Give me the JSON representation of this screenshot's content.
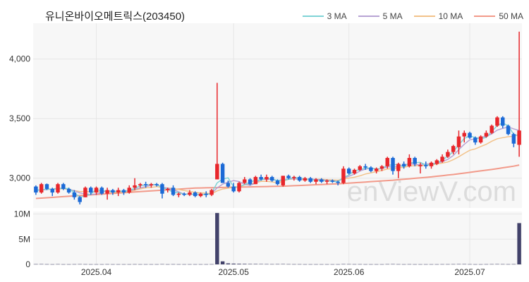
{
  "chart_data": {
    "type": "candlestick",
    "title": "유니온바이오메트릭스(203450)",
    "watermark": "enViewV.com",
    "price_axis": {
      "min": 2750,
      "max": 4300,
      "ticks": [
        3000,
        3500,
        4000
      ],
      "tick_labels": [
        "3,000",
        "3,500",
        "4,000"
      ]
    },
    "volume_axis": {
      "min": 0,
      "max": 10500000,
      "ticks": [
        0,
        5000000,
        10000000
      ],
      "tick_labels": [
        "0",
        "5M",
        "10M"
      ]
    },
    "x_tick_labels": [
      {
        "label": "2025.04",
        "at_index": 11
      },
      {
        "label": "2025.05",
        "at_index": 36
      },
      {
        "label": "2025.06",
        "at_index": 57
      },
      {
        "label": "2025.07",
        "at_index": 79
      }
    ],
    "legend": [
      {
        "name": "3 MA",
        "color": "#7fd3d6",
        "ref": "ma3"
      },
      {
        "name": "5 MA",
        "color": "#b7a3d4",
        "ref": "ma5"
      },
      {
        "name": "10 MA",
        "color": "#f2c28a",
        "ref": "ma10"
      },
      {
        "name": "50 MA",
        "color": "#f29a8a",
        "ref": "ma50"
      }
    ],
    "colors": {
      "up": "#e8262b",
      "down": "#1c6ad6",
      "volume": "#42426a",
      "grid": "#e6e6e6",
      "plot_bg": "#f7f7f7"
    },
    "candles": [
      [
        2930,
        2940,
        2860,
        2880,
        50000
      ],
      [
        2880,
        2960,
        2870,
        2950,
        60000
      ],
      [
        2950,
        2955,
        2900,
        2910,
        40000
      ],
      [
        2910,
        2920,
        2850,
        2880,
        30000
      ],
      [
        2880,
        2960,
        2870,
        2950,
        50000
      ],
      [
        2950,
        2960,
        2900,
        2910,
        30000
      ],
      [
        2910,
        2920,
        2870,
        2880,
        30000
      ],
      [
        2880,
        2900,
        2820,
        2840,
        40000
      ],
      [
        2840,
        2850,
        2780,
        2800,
        50000
      ],
      [
        2840,
        2930,
        2840,
        2920,
        40000
      ],
      [
        2920,
        2930,
        2860,
        2880,
        30000
      ],
      [
        2880,
        2930,
        2860,
        2920,
        30000
      ],
      [
        2920,
        2930,
        2860,
        2870,
        30000
      ],
      [
        2870,
        2920,
        2820,
        2900,
        40000
      ],
      [
        2900,
        2910,
        2860,
        2880,
        30000
      ],
      [
        2880,
        2920,
        2850,
        2900,
        30000
      ],
      [
        2900,
        2910,
        2860,
        2880,
        30000
      ],
      [
        2880,
        2940,
        2870,
        2920,
        30000
      ],
      [
        2920,
        3000,
        2900,
        2940,
        40000
      ],
      [
        2940,
        2960,
        2920,
        2950,
        30000
      ],
      [
        2950,
        2970,
        2920,
        2940,
        30000
      ],
      [
        2940,
        2960,
        2920,
        2950,
        30000
      ],
      [
        2950,
        2960,
        2930,
        2940,
        30000
      ],
      [
        2950,
        2960,
        2830,
        2870,
        50000
      ],
      [
        2900,
        2920,
        2880,
        2910,
        30000
      ],
      [
        2920,
        2940,
        2850,
        2860,
        40000
      ],
      [
        2860,
        2880,
        2840,
        2870,
        30000
      ],
      [
        2870,
        2880,
        2850,
        2860,
        30000
      ],
      [
        2860,
        2900,
        2850,
        2880,
        30000
      ],
      [
        2880,
        2890,
        2840,
        2850,
        30000
      ],
      [
        2850,
        2880,
        2840,
        2870,
        30000
      ],
      [
        2870,
        2890,
        2840,
        2860,
        30000
      ],
      [
        2860,
        2910,
        2850,
        2900,
        40000
      ],
      [
        2990,
        3800,
        2990,
        3120,
        10200000
      ],
      [
        3120,
        3130,
        2960,
        2960,
        600000
      ],
      [
        2960,
        2980,
        2920,
        2930,
        200000
      ],
      [
        2930,
        2960,
        2880,
        2890,
        150000
      ],
      [
        2890,
        2970,
        2880,
        2960,
        120000
      ],
      [
        2960,
        3010,
        2950,
        2990,
        100000
      ],
      [
        2990,
        3000,
        2940,
        2950,
        80000
      ],
      [
        2950,
        3020,
        2950,
        3010,
        80000
      ],
      [
        3010,
        3030,
        2980,
        2990,
        70000
      ],
      [
        2990,
        3030,
        2970,
        3010,
        60000
      ],
      [
        3010,
        3020,
        2970,
        2980,
        50000
      ],
      [
        2980,
        2990,
        2940,
        2950,
        60000
      ],
      [
        2940,
        3020,
        2930,
        3020,
        70000
      ],
      [
        3020,
        3030,
        2990,
        3000,
        50000
      ],
      [
        3000,
        3020,
        2980,
        3010,
        40000
      ],
      [
        3010,
        3020,
        2970,
        2980,
        40000
      ],
      [
        2980,
        3010,
        2970,
        3000,
        30000
      ],
      [
        3000,
        3010,
        2960,
        2970,
        30000
      ],
      [
        2970,
        3000,
        2950,
        2990,
        30000
      ],
      [
        2990,
        3000,
        2960,
        2970,
        30000
      ],
      [
        2970,
        2990,
        2950,
        2980,
        30000
      ],
      [
        2980,
        2990,
        2960,
        2970,
        30000
      ],
      [
        2970,
        2980,
        2940,
        2960,
        30000
      ],
      [
        2960,
        3100,
        2950,
        3080,
        60000
      ],
      [
        3080,
        3090,
        3030,
        3040,
        50000
      ],
      [
        3040,
        3080,
        3030,
        3070,
        40000
      ],
      [
        3070,
        3110,
        3060,
        3100,
        40000
      ],
      [
        3100,
        3120,
        3070,
        3090,
        30000
      ],
      [
        3090,
        3100,
        3050,
        3060,
        30000
      ],
      [
        3060,
        3090,
        3040,
        3080,
        30000
      ],
      [
        3080,
        3110,
        3060,
        3100,
        30000
      ],
      [
        3100,
        3180,
        3080,
        3170,
        50000
      ],
      [
        3170,
        3180,
        3030,
        3060,
        60000
      ],
      [
        3060,
        3130,
        3000,
        3120,
        40000
      ],
      [
        3120,
        3140,
        3080,
        3100,
        30000
      ],
      [
        3100,
        3200,
        3090,
        3170,
        40000
      ],
      [
        3170,
        3180,
        3100,
        3120,
        30000
      ],
      [
        3100,
        3130,
        3040,
        3110,
        30000
      ],
      [
        3110,
        3140,
        3080,
        3100,
        30000
      ],
      [
        3100,
        3140,
        3080,
        3130,
        30000
      ],
      [
        3120,
        3160,
        3110,
        3150,
        30000
      ],
      [
        3140,
        3200,
        3130,
        3180,
        40000
      ],
      [
        3180,
        3240,
        3170,
        3220,
        40000
      ],
      [
        3220,
        3280,
        3200,
        3270,
        50000
      ],
      [
        3260,
        3400,
        3200,
        3350,
        60000
      ],
      [
        3350,
        3400,
        3300,
        3380,
        60000
      ],
      [
        3380,
        3390,
        3330,
        3340,
        40000
      ],
      [
        3340,
        3350,
        3280,
        3300,
        30000
      ],
      [
        3300,
        3360,
        3290,
        3350,
        30000
      ],
      [
        3350,
        3400,
        3340,
        3380,
        40000
      ],
      [
        3380,
        3450,
        3370,
        3440,
        50000
      ],
      [
        3440,
        3520,
        3430,
        3510,
        60000
      ],
      [
        3510,
        3520,
        3420,
        3440,
        50000
      ],
      [
        3440,
        3450,
        3360,
        3370,
        40000
      ],
      [
        3370,
        3380,
        3260,
        3290,
        50000
      ],
      [
        3280,
        4230,
        3180,
        3400,
        8200000
      ]
    ],
    "ma3": [
      2900,
      2900,
      2910,
      2907,
      2913,
      2913,
      2913,
      2877,
      2840,
      2853,
      2867,
      2907,
      2890,
      2897,
      2883,
      2893,
      2887,
      2900,
      2913,
      2937,
      2943,
      2947,
      2947,
      2920,
      2907,
      2880,
      2880,
      2863,
      2870,
      2863,
      2867,
      2860,
      2877,
      2960,
      2993,
      3003,
      2927,
      2927,
      2947,
      2967,
      2983,
      2983,
      3003,
      2993,
      2980,
      2983,
      2990,
      3010,
      2997,
      2997,
      2983,
      2987,
      2977,
      2980,
      2973,
      2970,
      3007,
      3027,
      3063,
      3070,
      3087,
      3083,
      3077,
      3080,
      3110,
      3110,
      3117,
      3093,
      3130,
      3130,
      3133,
      3110,
      3113,
      3127,
      3153,
      3183,
      3223,
      3280,
      3333,
      3357,
      3340,
      3330,
      3343,
      3390,
      3443,
      3463,
      3440,
      3367,
      3353
    ],
    "ma5": [
      2900,
      2900,
      2905,
      2910,
      2914,
      2916,
      2908,
      2894,
      2876,
      2868,
      2864,
      2868,
      2878,
      2898,
      2888,
      2894,
      2888,
      2894,
      2906,
      2918,
      2930,
      2940,
      2948,
      2924,
      2916,
      2902,
      2886,
      2866,
      2868,
      2860,
      2866,
      2862,
      2872,
      2918,
      2950,
      2966,
      2980,
      2972,
      2948,
      2940,
      2958,
      2990,
      2990,
      2990,
      2980,
      2988,
      2992,
      2996,
      2992,
      2992,
      2992,
      2990,
      2986,
      2982,
      2978,
      2974,
      3000,
      3016,
      3034,
      3060,
      3076,
      3084,
      3076,
      3080,
      3096,
      3094,
      3098,
      3106,
      3124,
      3114,
      3114,
      3120,
      3118,
      3126,
      3138,
      3158,
      3190,
      3240,
      3284,
      3322,
      3330,
      3344,
      3350,
      3372,
      3404,
      3418,
      3430,
      3414,
      3400
    ],
    "ma10": [
      2900,
      2900,
      2905,
      2908,
      2910,
      2912,
      2905,
      2896,
      2888,
      2889,
      2885,
      2884,
      2886,
      2888,
      2882,
      2881,
      2882,
      2886,
      2899,
      2910,
      2919,
      2923,
      2929,
      2920,
      2917,
      2913,
      2905,
      2897,
      2889,
      2880,
      2877,
      2874,
      2869,
      2893,
      2909,
      2916,
      2922,
      2928,
      2943,
      2950,
      2962,
      2973,
      2974,
      2969,
      2962,
      2974,
      2991,
      2993,
      2991,
      2986,
      2990,
      2991,
      2991,
      2987,
      2985,
      2983,
      2995,
      3001,
      3008,
      3020,
      3035,
      3045,
      3055,
      3064,
      3078,
      3079,
      3087,
      3091,
      3102,
      3105,
      3105,
      3109,
      3111,
      3120,
      3126,
      3136,
      3155,
      3180,
      3208,
      3234,
      3246,
      3266,
      3284,
      3310,
      3331,
      3340,
      3348,
      3351,
      3371
    ],
    "ma50": [
      2830,
      2833,
      2836,
      2839,
      2842,
      2845,
      2848,
      2851,
      2854,
      2857,
      2860,
      2863,
      2866,
      2869,
      2872,
      2875,
      2878,
      2881,
      2884,
      2887,
      2890,
      2893,
      2896,
      2899,
      2902,
      2905,
      2908,
      2911,
      2914,
      2917,
      2918,
      2919,
      2920,
      2921,
      2922,
      2923,
      2924,
      2925,
      2926,
      2927,
      2928,
      2929,
      2930,
      2931,
      2932,
      2933,
      2935,
      2937,
      2939,
      2941,
      2943,
      2945,
      2947,
      2949,
      2951,
      2953,
      2956,
      2959,
      2962,
      2965,
      2968,
      2971,
      2974,
      2977,
      2980,
      2983,
      2987,
      2991,
      2995,
      2999,
      3003,
      3007,
      3011,
      3016,
      3021,
      3026,
      3031,
      3037,
      3043,
      3049,
      3055,
      3061,
      3067,
      3073,
      3080,
      3087,
      3094,
      3101,
      3110
    ]
  }
}
